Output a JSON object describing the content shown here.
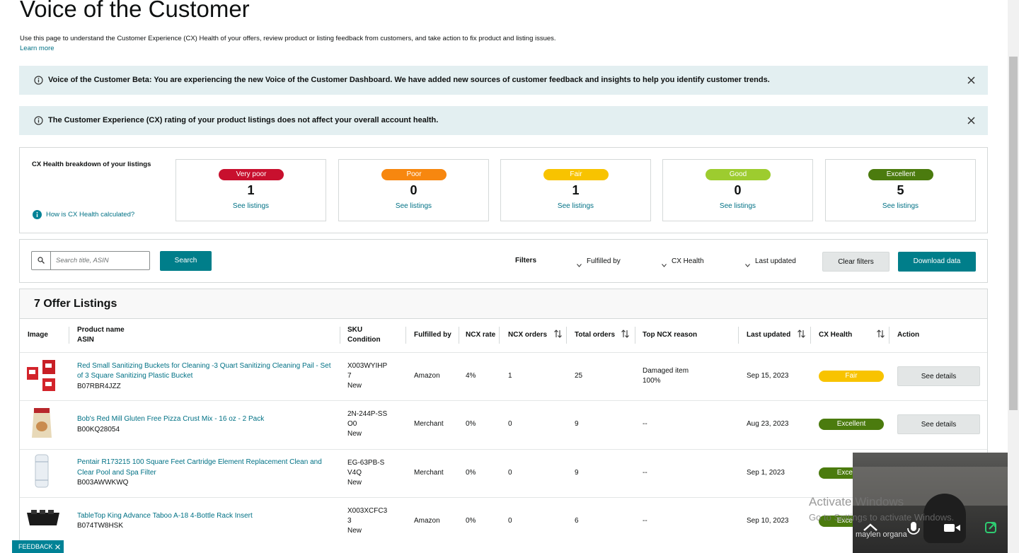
{
  "header": {
    "title": "Voice of the Customer",
    "description": "Use this page to understand the Customer Experience (CX) Health of your offers, review product or listing feedback from customers, and take action to fix product and listing issues.",
    "learn_more": "Learn more"
  },
  "banners": [
    {
      "text": "Voice of the Customer Beta: You are experiencing the new Voice of the Customer Dashboard. We have added new sources of customer feedback and insights to help you identify customer trends."
    },
    {
      "text": "The Customer Experience (CX) rating of your product listings does not affect your overall account health."
    }
  ],
  "cx_health": {
    "title": "CX Health breakdown of your listings",
    "help_link": "How is CX Health calculated?",
    "cards": [
      {
        "label": "Very poor",
        "count": 1,
        "link": "See listings",
        "color": "#c8102e"
      },
      {
        "label": "Poor",
        "count": 0,
        "link": "See listings",
        "color": "#f7870f"
      },
      {
        "label": "Fair",
        "count": 1,
        "link": "See listings",
        "color": "#f8c300"
      },
      {
        "label": "Good",
        "count": 0,
        "link": "See listings",
        "color": "#9dcc2f"
      },
      {
        "label": "Excellent",
        "count": 5,
        "link": "See listings",
        "color": "#4b7b0e"
      }
    ]
  },
  "toolbar": {
    "search_placeholder": "Search title, ASIN",
    "search_button": "Search",
    "filters_label": "Filters",
    "filters": [
      "Fulfilled by",
      "CX Health",
      "Last updated"
    ],
    "clear_button": "Clear filters",
    "download_button": "Download data"
  },
  "table": {
    "title": "7 Offer Listings",
    "columns": [
      {
        "lines": [
          "Image"
        ],
        "sortable": false
      },
      {
        "lines": [
          "Product name",
          "ASIN"
        ],
        "sortable": false
      },
      {
        "lines": [
          "SKU",
          "Condition"
        ],
        "sortable": false
      },
      {
        "lines": [
          "Fulfilled by"
        ],
        "sortable": false
      },
      {
        "lines": [
          "NCX rate"
        ],
        "sortable": false
      },
      {
        "lines": [
          "NCX orders"
        ],
        "sortable": true
      },
      {
        "lines": [
          "Total orders"
        ],
        "sortable": true
      },
      {
        "lines": [
          "Top NCX reason"
        ],
        "sortable": false
      },
      {
        "lines": [
          "Last updated"
        ],
        "sortable": true
      },
      {
        "lines": [
          "CX Health"
        ],
        "sortable": true
      },
      {
        "lines": [
          "Action"
        ],
        "sortable": false
      }
    ],
    "rows": [
      {
        "product": "Red Small Sanitizing Buckets for Cleaning -3 Quart Sanitizing Cleaning Pail - Set of 3 Square Sanitizing Plastic Bucket",
        "asin": "B07RBR4JZZ",
        "sku": "X003WYIHP7",
        "condition": "New",
        "fulfilled_by": "Amazon",
        "ncx_rate": "4%",
        "ncx_orders": 1,
        "total_orders": 25,
        "top_reason": [
          "Damaged item",
          "100%"
        ],
        "last_updated": "Sep 15, 2023",
        "cx_health": {
          "label": "Fair",
          "color": "#f8c300"
        },
        "action": "See details"
      },
      {
        "product": "Bob's Red Mill Gluten Free Pizza Crust Mix - 16 oz - 2 Pack",
        "asin": "B00KQ28054",
        "sku": "2N-244P-SSO0",
        "condition": "New",
        "fulfilled_by": "Merchant",
        "ncx_rate": "0%",
        "ncx_orders": 0,
        "total_orders": 9,
        "top_reason": [
          "--"
        ],
        "last_updated": "Aug 23, 2023",
        "cx_health": {
          "label": "Excellent",
          "color": "#4b7b0e"
        },
        "action": "See details"
      },
      {
        "product": "Pentair R173215 100 Square Feet Cartridge Element Replacement Clean and Clear Pool and Spa Filter",
        "asin": "B003AWWKWQ",
        "sku": "EG-63PB-SV4Q",
        "condition": "New",
        "fulfilled_by": "Merchant",
        "ncx_rate": "0%",
        "ncx_orders": 0,
        "total_orders": 9,
        "top_reason": [
          "--"
        ],
        "last_updated": "Sep 1, 2023",
        "cx_health": {
          "label": "Excellent",
          "color": "#4b7b0e"
        }
      },
      {
        "product": "TableTop King Advance Taboo A-18 4-Bottle Rack Insert",
        "asin": "B074TW8HSK",
        "sku": "X003XCFC33",
        "condition": "New",
        "fulfilled_by": "Amazon",
        "ncx_rate": "0%",
        "ncx_orders": 0,
        "total_orders": 6,
        "top_reason": [
          "--"
        ],
        "last_updated": "Sep 10, 2023",
        "cx_health": {
          "label": "Excellent",
          "color": "#4b7b0e"
        }
      }
    ]
  },
  "feedback": "FEEDBACK",
  "video": {
    "name": "maylen organa"
  },
  "watermark": {
    "title": "Activate Windows",
    "subtitle": "Go to Settings to activate Windows."
  }
}
